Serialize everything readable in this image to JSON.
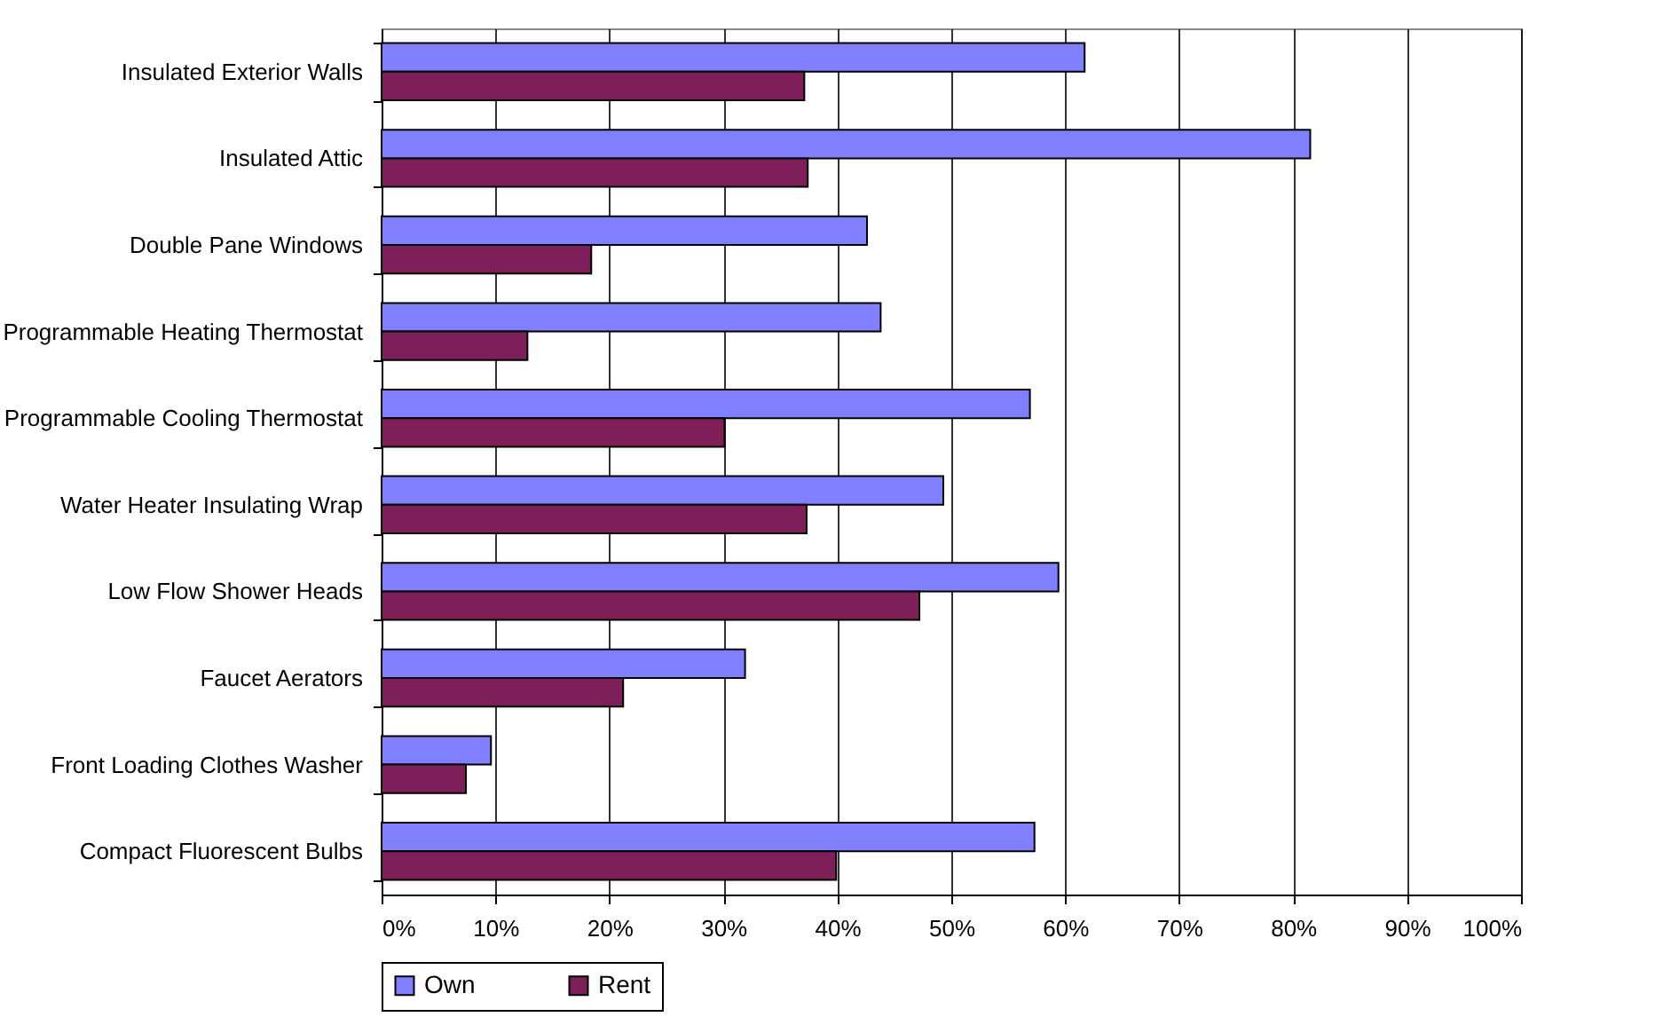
{
  "chart_data": {
    "type": "bar",
    "orientation": "horizontal",
    "categories": [
      "Insulated Exterior Walls",
      "Insulated Attic",
      "Double Pane Windows",
      "Programmable Heating Thermostat",
      "Programmable Cooling Thermostat",
      "Water Heater Insulating Wrap",
      "Low Flow Shower Heads",
      "Faucet Aerators",
      "Front Loading Clothes Washer",
      "Compact Fluorescent Bulbs"
    ],
    "series": [
      {
        "name": "Own",
        "color": "#8080ff",
        "values": [
          61.7,
          81.5,
          42.6,
          43.8,
          56.9,
          49.3,
          59.4,
          31.9,
          9.6,
          57.3
        ]
      },
      {
        "name": "Rent",
        "color": "#7f1f5a",
        "values": [
          37.1,
          37.4,
          18.4,
          12.8,
          30.1,
          37.3,
          47.2,
          21.2,
          7.4,
          39.9
        ]
      }
    ],
    "xlim": [
      0,
      100
    ],
    "xticks": [
      {
        "value": 0,
        "label": "0%"
      },
      {
        "value": 10,
        "label": "10%"
      },
      {
        "value": 20,
        "label": "20%"
      },
      {
        "value": 30,
        "label": "30%"
      },
      {
        "value": 40,
        "label": "40%"
      },
      {
        "value": 50,
        "label": "50%"
      },
      {
        "value": 60,
        "label": "60%"
      },
      {
        "value": 70,
        "label": "70%"
      },
      {
        "value": 80,
        "label": "80%"
      },
      {
        "value": 90,
        "label": "90%"
      },
      {
        "value": 100,
        "label": "100%"
      }
    ],
    "grid": "x",
    "legend": "bottom"
  }
}
